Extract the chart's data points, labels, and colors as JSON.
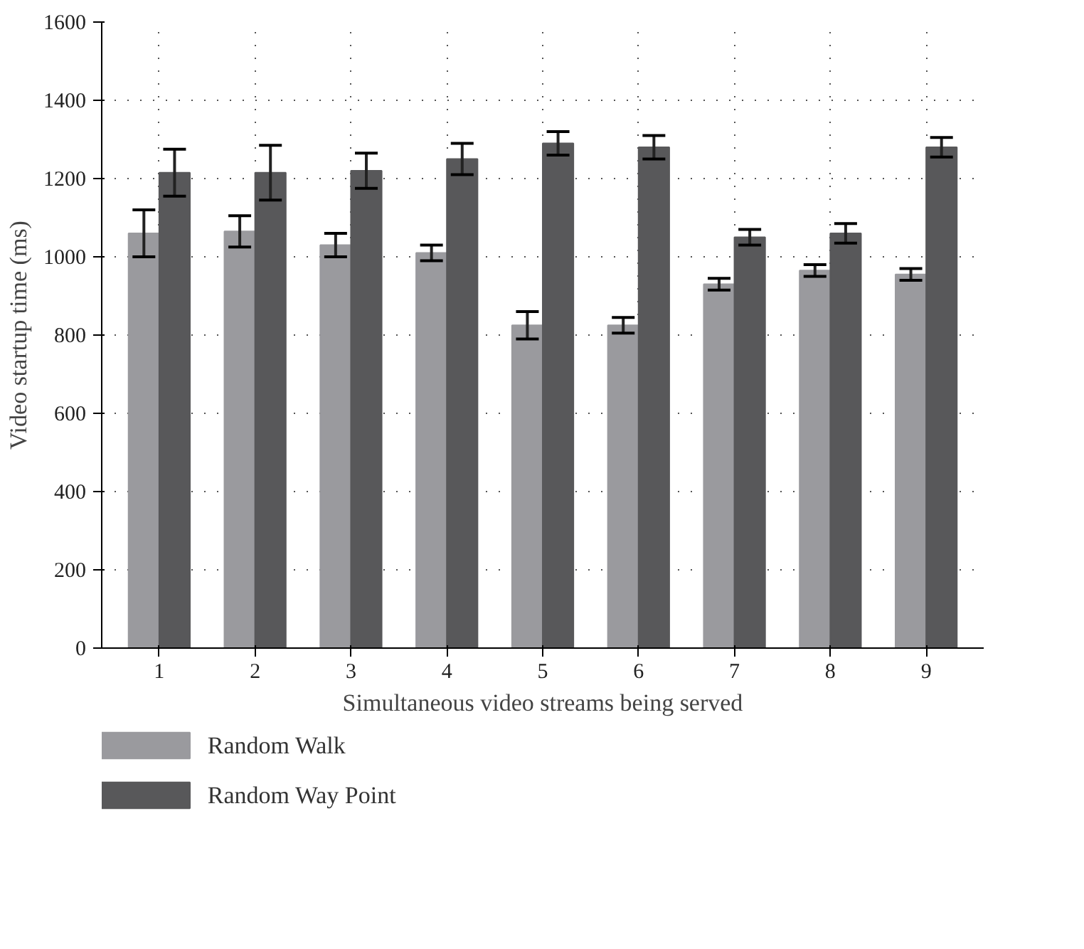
{
  "chart_data": {
    "type": "bar",
    "xlabel": "Simultaneous video streams being served",
    "ylabel": "Video startup time (ms)",
    "categories": [
      "1",
      "2",
      "3",
      "4",
      "5",
      "6",
      "7",
      "8",
      "9"
    ],
    "series": [
      {
        "name": "Random Walk",
        "color": "#9a9a9e",
        "values": [
          1060,
          1065,
          1030,
          1010,
          825,
          825,
          930,
          965,
          955
        ],
        "errors": [
          60,
          40,
          30,
          20,
          35,
          20,
          15,
          15,
          15
        ]
      },
      {
        "name": "Random Way Point",
        "color": "#58585a",
        "values": [
          1215,
          1215,
          1220,
          1250,
          1290,
          1280,
          1050,
          1060,
          1280
        ],
        "errors": [
          60,
          70,
          45,
          40,
          30,
          30,
          20,
          25,
          25
        ]
      }
    ],
    "ylim": [
      0,
      1600
    ],
    "yticks": [
      0,
      200,
      400,
      600,
      800,
      1000,
      1200,
      1400,
      1600
    ],
    "grid": true,
    "legend": "bottom left"
  }
}
